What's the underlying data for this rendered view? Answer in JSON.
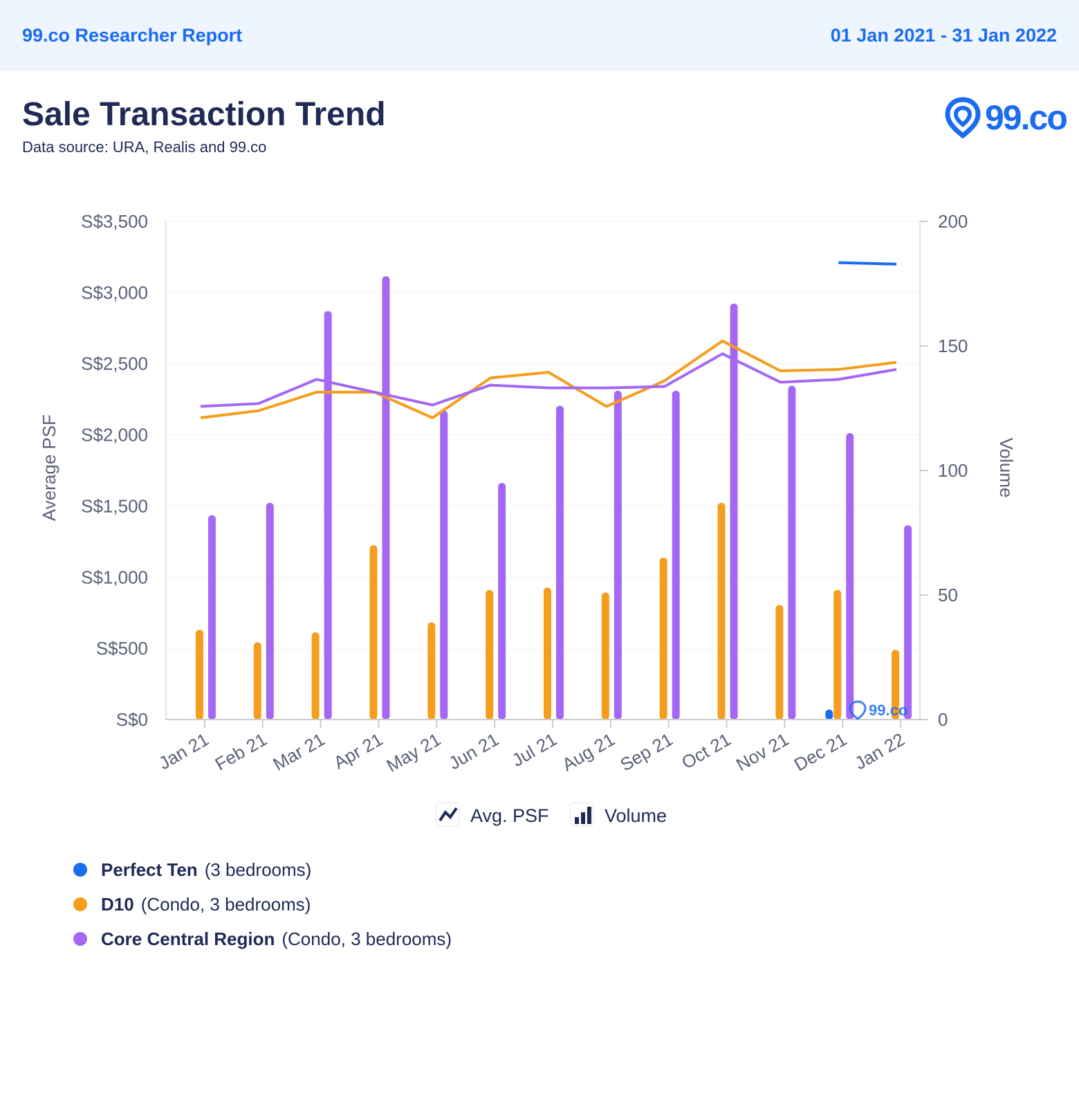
{
  "header": {
    "brand": "99.co Researcher Report",
    "date_range": "01 Jan 2021 - 31 Jan 2022"
  },
  "title": "Sale Transaction Trend",
  "source": "Data source: URA, Realis and 99.co",
  "logo": {
    "text": "99.co",
    "watermark": "99.co"
  },
  "colors": {
    "perfect_ten": "#1a6cf0",
    "d10": "#f59d1c",
    "ccr": "#a468f5",
    "brand": "#1a6cf0"
  },
  "chart_data": {
    "type": "bar+line",
    "categories": [
      "Jan 21",
      "Feb 21",
      "Mar 21",
      "Apr 21",
      "May 21",
      "Jun 21",
      "Jul 21",
      "Aug 21",
      "Sep 21",
      "Oct 21",
      "Nov 21",
      "Dec 21",
      "Jan 22"
    ],
    "ylabel": "Average PSF",
    "y2label": "Volume",
    "ylim": [
      0,
      3500
    ],
    "y2lim": [
      0,
      200
    ],
    "y_ticks": [
      "S$0",
      "S$500",
      "S$1,000",
      "S$1,500",
      "S$2,000",
      "S$2,500",
      "S$3,000",
      "S$3,500"
    ],
    "y_tick_values": [
      0,
      500,
      1000,
      1500,
      2000,
      2500,
      3000,
      3500
    ],
    "y2_ticks": [
      "0",
      "50",
      "100",
      "150",
      "200"
    ],
    "y2_tick_values": [
      0,
      50,
      100,
      150,
      200
    ],
    "volume_series": [
      {
        "name": "Perfect Ten",
        "values": [
          null,
          null,
          null,
          null,
          null,
          null,
          null,
          null,
          null,
          null,
          null,
          4,
          null
        ]
      },
      {
        "name": "D10",
        "values": [
          36,
          31,
          35,
          70,
          39,
          52,
          53,
          51,
          65,
          87,
          46,
          52,
          28
        ]
      },
      {
        "name": "Core Central Region",
        "values": [
          82,
          87,
          164,
          178,
          124,
          95,
          126,
          132,
          132,
          167,
          134,
          115,
          78
        ]
      }
    ],
    "psf_series": [
      {
        "name": "Perfect Ten",
        "values": [
          null,
          null,
          null,
          null,
          null,
          null,
          null,
          null,
          null,
          null,
          null,
          3210,
          3200
        ]
      },
      {
        "name": "D10",
        "values": [
          2120,
          2170,
          2300,
          2300,
          2120,
          2400,
          2440,
          2200,
          2380,
          2660,
          2450,
          2460,
          2510
        ]
      },
      {
        "name": "Core Central Region",
        "values": [
          2200,
          2220,
          2390,
          2300,
          2210,
          2350,
          2330,
          2330,
          2340,
          2570,
          2370,
          2390,
          2460
        ]
      }
    ],
    "legend": {
      "avg_psf": "Avg. PSF",
      "volume": "Volume"
    }
  },
  "series_legend": [
    {
      "name": "Perfect Ten",
      "detail": "(3 bedrooms)"
    },
    {
      "name": "D10",
      "detail": "(Condo, 3 bedrooms)"
    },
    {
      "name": "Core Central Region",
      "detail": "(Condo, 3 bedrooms)"
    }
  ]
}
